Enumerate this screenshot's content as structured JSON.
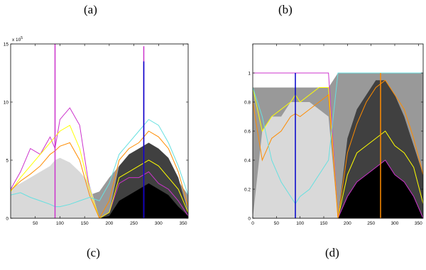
{
  "panel_labels": {
    "a": "(a)",
    "b": "(b)",
    "c": "(c)",
    "d": "(d)"
  },
  "chart_data": [
    {
      "type": "area",
      "panel": "(c)",
      "title": "",
      "xlabel": "",
      "ylabel": "",
      "xlim": [
        0,
        360
      ],
      "ylim": [
        0,
        15
      ],
      "y_exponent_label": "x 10",
      "y_exponent_sup": "5",
      "xticks": [
        "50",
        "100",
        "150",
        "200",
        "250",
        "300",
        "350"
      ],
      "xtick_values": [
        50,
        100,
        150,
        200,
        250,
        300,
        350
      ],
      "yticks": [
        "0",
        "5",
        "10",
        "15"
      ],
      "ytick_values": [
        0,
        5,
        10,
        15
      ],
      "x": [
        0,
        20,
        40,
        60,
        80,
        90,
        100,
        120,
        140,
        160,
        180,
        200,
        220,
        240,
        260,
        280,
        300,
        320,
        340,
        360
      ],
      "series": [
        {
          "color": "#999999",
          "values": [
            2.5,
            2.6,
            2.8,
            3.0,
            2.8,
            3.0,
            3.0,
            2.9,
            2.5,
            2.0,
            2.3,
            3.5,
            4.5,
            5.0,
            5.0,
            4.8,
            4.5,
            4.0,
            3.2,
            2.0
          ]
        },
        {
          "color": "#d9d9d9",
          "values": [
            2.6,
            3.0,
            3.5,
            4.0,
            4.5,
            5.0,
            5.2,
            4.8,
            4.0,
            3.0,
            0.0,
            0.0,
            0.0,
            0.0,
            0.0,
            0.0,
            0.0,
            0.0,
            0.0,
            0.0
          ]
        },
        {
          "color": "#404040",
          "values": [
            0,
            0,
            0,
            0,
            0,
            0,
            0,
            0,
            0,
            0,
            0,
            0.5,
            4.5,
            5.5,
            6.0,
            6.5,
            6.0,
            5.2,
            3.5,
            0.5
          ]
        },
        {
          "color": "#000000",
          "values": [
            0,
            0,
            0,
            0,
            0,
            0,
            0,
            0,
            0,
            0,
            0,
            0.2,
            1.5,
            2.0,
            2.5,
            3.0,
            2.5,
            2.0,
            1.0,
            0.2
          ]
        }
      ],
      "lines": [
        {
          "color": "#cc33cc",
          "values": [
            2.5,
            4.0,
            6.0,
            5.5,
            7.0,
            6.0,
            8.5,
            9.5,
            8.0,
            2.5,
            0.0,
            0.5,
            3.0,
            3.5,
            3.5,
            4.0,
            3.0,
            2.5,
            1.5,
            0.2
          ]
        },
        {
          "color": "#ffff00",
          "values": [
            2.3,
            3.5,
            4.5,
            5.5,
            6.5,
            7.0,
            7.5,
            8.0,
            6.0,
            2.5,
            0.0,
            0.5,
            3.5,
            4.0,
            4.5,
            5.0,
            4.5,
            3.5,
            2.5,
            0.5
          ]
        },
        {
          "color": "#ff8c00",
          "values": [
            2.4,
            3.2,
            3.8,
            4.5,
            5.5,
            5.8,
            6.2,
            6.5,
            5.0,
            2.0,
            0.0,
            1.5,
            5.0,
            6.0,
            6.5,
            7.5,
            7.0,
            6.0,
            4.0,
            1.0
          ]
        },
        {
          "color": "#66e0e0",
          "values": [
            2.0,
            2.2,
            1.8,
            1.5,
            1.2,
            1.0,
            1.0,
            1.2,
            1.5,
            1.8,
            1.5,
            3.0,
            5.5,
            6.5,
            7.5,
            8.5,
            8.0,
            6.5,
            4.5,
            2.0
          ]
        }
      ],
      "spikes": [
        {
          "x": 90,
          "peak": 15.0,
          "color": "#cc33cc"
        },
        {
          "x": 270,
          "peak": 14.8,
          "color": "#cc33cc"
        },
        {
          "x": 270,
          "peak": 13.5,
          "color": "#0000cc"
        }
      ]
    },
    {
      "type": "area",
      "panel": "(d)",
      "title": "",
      "xlabel": "",
      "ylabel": "",
      "xlim": [
        0,
        360
      ],
      "ylim": [
        0,
        1.2
      ],
      "xticks": [
        "0",
        "50",
        "100",
        "150",
        "200",
        "250",
        "300",
        "350"
      ],
      "xtick_values": [
        0,
        50,
        100,
        150,
        200,
        250,
        300,
        350
      ],
      "yticks": [
        "0",
        "0.2",
        "0.4",
        "0.6",
        "0.8",
        "1"
      ],
      "ytick_values": [
        0,
        0.2,
        0.4,
        0.6,
        0.8,
        1.0
      ],
      "x": [
        0,
        20,
        40,
        60,
        80,
        90,
        100,
        120,
        140,
        160,
        180,
        200,
        220,
        240,
        260,
        280,
        300,
        320,
        340,
        360
      ],
      "series": [
        {
          "color": "#999999",
          "values": [
            0.9,
            0.9,
            0.9,
            0.9,
            0.9,
            0.9,
            0.9,
            0.9,
            0.9,
            0.9,
            1.0,
            1.0,
            1.0,
            1.0,
            1.0,
            1.0,
            1.0,
            1.0,
            1.0,
            1.0
          ]
        },
        {
          "color": "#d9d9d9",
          "values": [
            0.0,
            0.6,
            0.7,
            0.7,
            0.8,
            0.8,
            0.8,
            0.8,
            0.75,
            0.7,
            0.0,
            0.0,
            0.0,
            0.0,
            0.0,
            0.0,
            0.0,
            0.0,
            0.0,
            0.0
          ]
        },
        {
          "color": "#404040",
          "values": [
            0,
            0,
            0,
            0,
            0,
            0,
            0,
            0,
            0,
            0,
            0.0,
            0.55,
            0.75,
            0.85,
            0.95,
            0.95,
            0.85,
            0.7,
            0.5,
            0.3
          ]
        },
        {
          "color": "#000000",
          "values": [
            0,
            0,
            0,
            0,
            0,
            0,
            0,
            0,
            0,
            0,
            0.0,
            0.15,
            0.25,
            0.3,
            0.35,
            0.4,
            0.3,
            0.25,
            0.15,
            0.0
          ]
        }
      ],
      "lines": [
        {
          "color": "#cc33cc",
          "values": [
            1.0,
            1.0,
            1.0,
            1.0,
            1.0,
            1.0,
            1.0,
            1.0,
            1.0,
            1.0,
            0.0,
            0.15,
            0.25,
            0.3,
            0.35,
            0.4,
            0.3,
            0.25,
            0.15,
            0.0
          ]
        },
        {
          "color": "#ffff00",
          "values": [
            0.9,
            0.6,
            0.7,
            0.75,
            0.8,
            0.85,
            0.8,
            0.85,
            0.9,
            0.9,
            0.0,
            0.3,
            0.45,
            0.5,
            0.55,
            0.6,
            0.5,
            0.45,
            0.35,
            0.1
          ]
        },
        {
          "color": "#ff8c00",
          "values": [
            0.8,
            0.4,
            0.55,
            0.6,
            0.7,
            0.72,
            0.7,
            0.75,
            0.8,
            0.85,
            0.0,
            0.45,
            0.65,
            0.8,
            0.9,
            0.95,
            0.85,
            0.75,
            0.55,
            0.3
          ]
        },
        {
          "color": "#66e0e0",
          "values": [
            0.9,
            0.7,
            0.4,
            0.25,
            0.15,
            0.1,
            0.15,
            0.2,
            0.3,
            0.4,
            1.0,
            1.0,
            1.0,
            1.0,
            1.0,
            1.0,
            1.0,
            1.0,
            1.0,
            1.0
          ]
        }
      ],
      "spikes": [
        {
          "x": 90,
          "peak": 1.0,
          "color": "#0000cc"
        },
        {
          "x": 270,
          "peak": 1.0,
          "color": "#ff8c00"
        }
      ]
    }
  ]
}
